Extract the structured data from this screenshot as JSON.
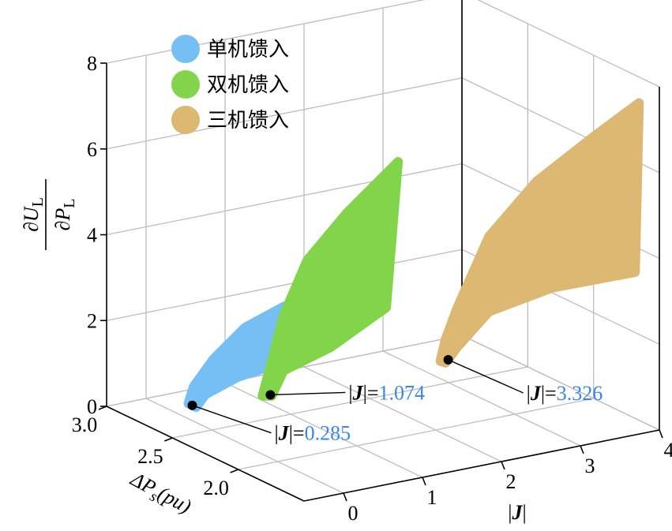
{
  "chart_data": {
    "type": "surface3d",
    "xlabel": {
      "prefix": "|",
      "symbol": "J",
      "suffix": "|"
    },
    "ylabel": {
      "main": "ΔP",
      "sub": "s",
      "unit": "(pu)"
    },
    "zlabel": {
      "num": "∂U",
      "num_sub": "L",
      "den": "∂P",
      "den_sub": "L"
    },
    "xlim": [
      -0.5,
      4
    ],
    "xticks": [
      0,
      1,
      2,
      3,
      4
    ],
    "ylim": [
      1.5,
      3.0
    ],
    "yticks": [
      {
        "value": 3.0,
        "label": "3.0"
      },
      2.5,
      {
        "value": 2.0,
        "label": "2.0"
      }
    ],
    "zlim": [
      0,
      8
    ],
    "zticks": [
      0,
      2,
      4,
      6,
      8
    ],
    "grid": true,
    "legend": "upper left",
    "series": [
      {
        "name": "单机馈入",
        "color": "#75bff5",
        "x": [
          0.285,
          0.285,
          0.285,
          0.285,
          0.285,
          0.285,
          0.285,
          0.285,
          0.285
        ],
        "y": [
          2.85,
          2.81,
          2.66,
          2.42,
          2.12,
          2.06,
          2.48,
          2.72,
          2.79
        ],
        "z": [
          0.0,
          0.45,
          1.31,
          2.4,
          3.34,
          2.2,
          1.15,
          0.4,
          0.0
        ]
      },
      {
        "name": "双机馈入",
        "color": "#82d54a",
        "x": [
          1.074,
          1.074,
          1.074,
          1.074,
          1.074,
          1.074,
          1.074,
          1.074,
          1.074,
          1.074
        ],
        "y": [
          2.76,
          2.71,
          2.6,
          2.42,
          2.12,
          1.73,
          1.82,
          2.24,
          2.6,
          2.69
        ],
        "z": [
          0.02,
          0.67,
          2.13,
          3.68,
          5.22,
          6.99,
          3.46,
          1.92,
          0.84,
          0.12
        ]
      },
      {
        "name": "三机馈入",
        "color": "#ddb872",
        "x": [
          3.326,
          3.326,
          3.326,
          3.326,
          3.326,
          3.326,
          3.326,
          3.326,
          3.326,
          3.326,
          3.326,
          3.326
        ],
        "y": [
          2.76,
          2.72,
          2.63,
          2.39,
          2.03,
          1.61,
          1.25,
          1.28,
          1.91,
          2.39,
          2.63,
          2.72
        ],
        "z": [
          0.0,
          0.57,
          1.44,
          3.45,
          5.26,
          6.89,
          8.24,
          4.25,
          2.96,
          1.7,
          0.52,
          0.02
        ]
      }
    ],
    "annotation_symbol": {
      "prefix": "|",
      "symbol": "J",
      "suffix": "|="
    },
    "annotations": [
      {
        "x": 0.285,
        "y": 2.82,
        "z": 0
      },
      {
        "x": 1.074,
        "y": 2.7,
        "z": 0.13
      },
      {
        "x": 3.326,
        "y": 2.7,
        "z": 0.12
      }
    ]
  }
}
